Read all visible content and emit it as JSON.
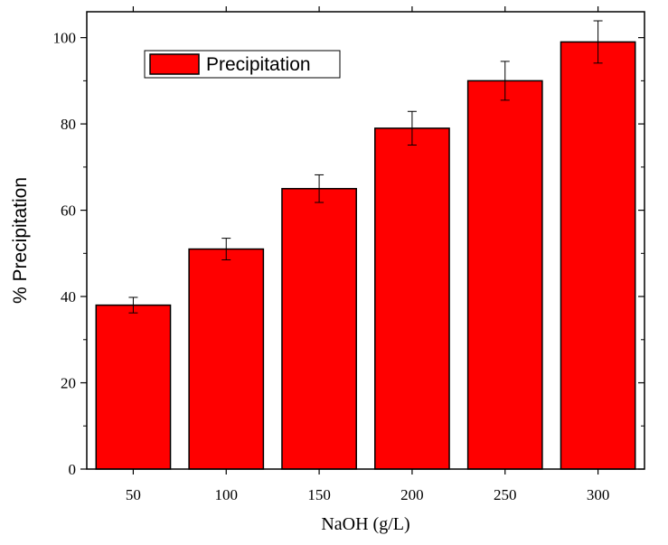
{
  "chart_data": {
    "type": "bar",
    "categories": [
      "50",
      "100",
      "150",
      "200",
      "250",
      "300"
    ],
    "series": [
      {
        "name": "Precipitation",
        "values": [
          38,
          51,
          65,
          79,
          90,
          99
        ],
        "errors": [
          1.8,
          2.5,
          3.2,
          3.9,
          4.5,
          4.9
        ],
        "color": "#ff0000"
      }
    ],
    "xlabel": "NaOH (g/L)",
    "ylabel": "% Precipitation",
    "ylim": [
      0,
      106
    ],
    "yticks": [
      0,
      20,
      40,
      60,
      80,
      100
    ],
    "yticklabels": [
      "0",
      "20",
      "40",
      "60",
      "80",
      "100"
    ],
    "grid": false,
    "legend": {
      "placement": "top-left"
    },
    "bar_edge_color": "#000000"
  }
}
